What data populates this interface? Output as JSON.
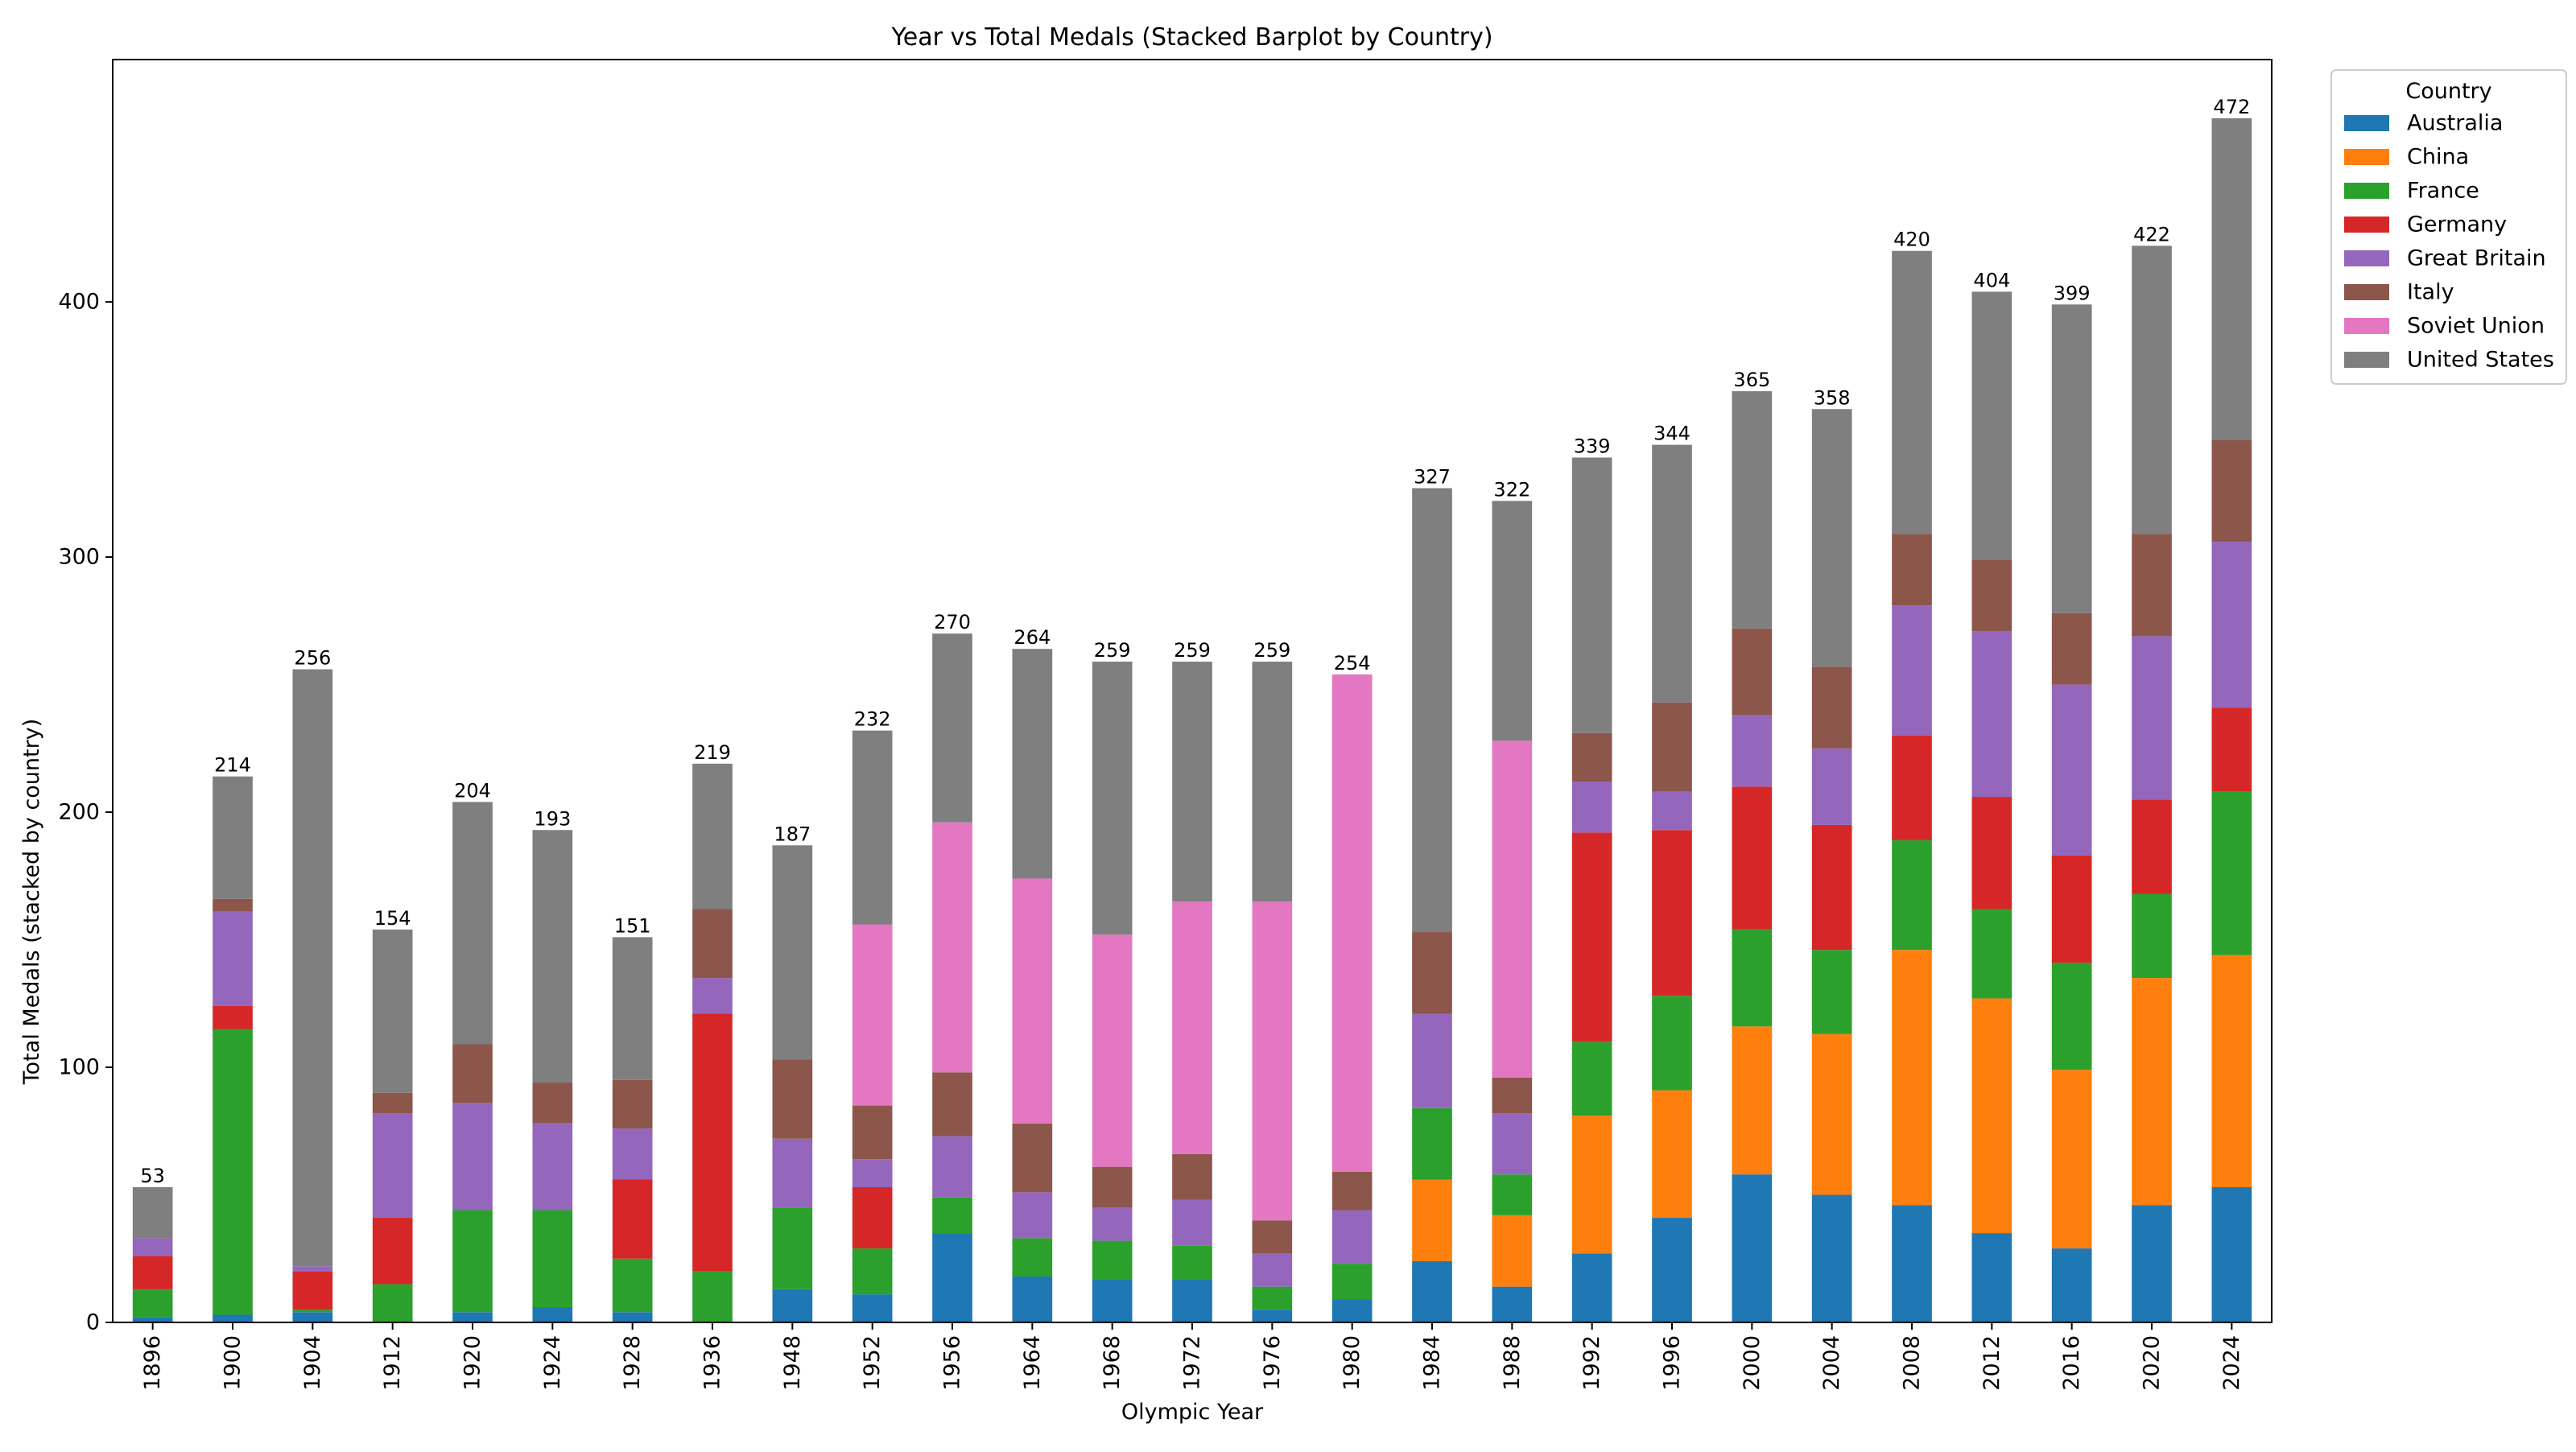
{
  "chart_data": {
    "type": "bar",
    "stacked": true,
    "title": "Year vs Total Medals (Stacked Barplot by Country)",
    "xlabel": "Olympic Year",
    "ylabel": "Total Medals (stacked by country)",
    "ylim": [
      0,
      495
    ],
    "yticks": [
      0,
      100,
      200,
      300,
      400
    ],
    "grid": false,
    "legend": {
      "title": "Country",
      "placement": "outside-top-right"
    },
    "categories": [
      "1896",
      "1900",
      "1904",
      "1912",
      "1920",
      "1924",
      "1928",
      "1936",
      "1948",
      "1952",
      "1956",
      "1964",
      "1968",
      "1972",
      "1976",
      "1980",
      "1984",
      "1988",
      "1992",
      "1996",
      "2000",
      "2004",
      "2008",
      "2012",
      "2016",
      "2020",
      "2024"
    ],
    "totals": [
      53,
      214,
      256,
      154,
      204,
      193,
      151,
      219,
      187,
      232,
      270,
      264,
      259,
      259,
      259,
      254,
      327,
      322,
      339,
      344,
      365,
      358,
      420,
      404,
      399,
      422,
      472
    ],
    "series": [
      {
        "name": "Australia",
        "color": "#1f77b4",
        "values": [
          2,
          3,
          4,
          0,
          4,
          6,
          4,
          0,
          13,
          11,
          35,
          18,
          17,
          17,
          5,
          9,
          24,
          14,
          27,
          41,
          58,
          50,
          46,
          35,
          29,
          46,
          53
        ]
      },
      {
        "name": "China",
        "color": "#ff7f0e",
        "values": [
          0,
          0,
          0,
          0,
          0,
          0,
          0,
          0,
          0,
          0,
          0,
          0,
          0,
          0,
          0,
          0,
          32,
          28,
          54,
          50,
          58,
          63,
          100,
          92,
          70,
          89,
          91
        ]
      },
      {
        "name": "France",
        "color": "#2ca02c",
        "values": [
          11,
          112,
          1,
          15,
          40,
          38,
          21,
          20,
          32,
          18,
          14,
          15,
          15,
          13,
          9,
          14,
          28,
          16,
          29,
          37,
          38,
          33,
          43,
          35,
          42,
          33,
          64
        ]
      },
      {
        "name": "Germany",
        "color": "#d62728",
        "values": [
          13,
          9,
          15,
          26,
          0,
          0,
          31,
          101,
          0,
          24,
          0,
          0,
          0,
          0,
          0,
          0,
          0,
          0,
          82,
          65,
          56,
          49,
          41,
          44,
          42,
          37,
          33
        ]
      },
      {
        "name": "Great Britain",
        "color": "#9467bd",
        "values": [
          7,
          37,
          2,
          41,
          42,
          34,
          20,
          14,
          27,
          11,
          24,
          18,
          13,
          18,
          13,
          21,
          37,
          24,
          20,
          15,
          28,
          30,
          51,
          65,
          67,
          64,
          65
        ]
      },
      {
        "name": "Italy",
        "color": "#8c564b",
        "values": [
          0,
          5,
          0,
          8,
          23,
          16,
          19,
          27,
          31,
          21,
          25,
          27,
          16,
          18,
          13,
          15,
          32,
          14,
          19,
          35,
          34,
          32,
          28,
          28,
          28,
          40,
          40
        ]
      },
      {
        "name": "Soviet Union",
        "color": "#e377c2",
        "values": [
          0,
          0,
          0,
          0,
          0,
          0,
          0,
          0,
          0,
          71,
          98,
          96,
          91,
          99,
          125,
          195,
          0,
          132,
          0,
          0,
          0,
          0,
          0,
          0,
          0,
          0,
          0
        ]
      },
      {
        "name": "United States",
        "color": "#7f7f7f",
        "values": [
          20,
          48,
          234,
          64,
          95,
          99,
          56,
          57,
          84,
          76,
          74,
          90,
          107,
          94,
          94,
          0,
          174,
          94,
          108,
          101,
          93,
          101,
          111,
          105,
          121,
          113,
          126
        ]
      }
    ]
  }
}
